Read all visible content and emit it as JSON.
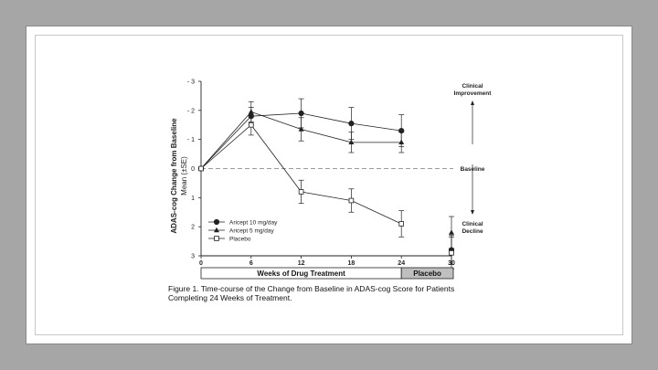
{
  "colors": {
    "background": "#a6a6a6",
    "panel": "#ffffff",
    "ink": "#222222",
    "placebo_bar": "#bfbfbf"
  },
  "chart_data": {
    "type": "line",
    "y_label_line1": "ADAS-cog Change from Baseline",
    "y_label_line2": "Mean (±SE)",
    "y_axis_inverted": true,
    "ylim": [
      3,
      -3
    ],
    "y_ticks": [
      {
        "value": -3,
        "label": "- 3"
      },
      {
        "value": -2,
        "label": "- 2"
      },
      {
        "value": -1,
        "label": "- 1"
      },
      {
        "value": 0,
        "label": "0"
      },
      {
        "value": 1,
        "label": "1"
      },
      {
        "value": 2,
        "label": "2"
      },
      {
        "value": 3,
        "label": "3"
      }
    ],
    "xlim": [
      0,
      30
    ],
    "x_ticks": [
      0,
      6,
      12,
      18,
      24,
      30
    ],
    "baseline_value": 0,
    "series": [
      {
        "name": "Aricept 10 mg/day",
        "marker": "circle-filled",
        "x": [
          0,
          6,
          12,
          18,
          24
        ],
        "y": [
          0,
          -1.8,
          -1.9,
          -1.55,
          -1.3
        ],
        "err": [
          0,
          0.3,
          0.5,
          0.55,
          0.55
        ],
        "washout": {
          "x": 30,
          "y": 2.8,
          "err": 0.5
        }
      },
      {
        "name": "Aricept 5 mg/day",
        "marker": "triangle-filled",
        "x": [
          0,
          6,
          12,
          18,
          24
        ],
        "y": [
          0,
          -1.95,
          -1.35,
          -0.9,
          -0.9
        ],
        "err": [
          0,
          0.35,
          0.4,
          0.35,
          0.35
        ],
        "washout": {
          "x": 30,
          "y": 2.2,
          "err": 0.55
        }
      },
      {
        "name": "Placebo",
        "marker": "square-open",
        "x": [
          0,
          6,
          12,
          18,
          24
        ],
        "y": [
          0,
          -1.5,
          0.8,
          1.1,
          1.9
        ],
        "err": [
          0,
          0.35,
          0.4,
          0.4,
          0.45
        ],
        "washout": {
          "x": 30,
          "y": 2.9,
          "err": 0.55
        }
      }
    ],
    "annotations": {
      "improvement": [
        "Clinical",
        "Improvement"
      ],
      "baseline": "Baseline",
      "decline": [
        "Clinical",
        "Decline"
      ]
    },
    "period_bar": {
      "treatment": {
        "label": "Weeks of Drug Treatment",
        "x_from": 0,
        "x_to": 24
      },
      "placebo": {
        "label": "Placebo",
        "x_from": 24,
        "x_to": 30
      }
    },
    "caption": "Figure 1. Time-course of the Change from Baseline in ADAS-cog Score for Patients Completing 24 Weeks of Treatment."
  }
}
